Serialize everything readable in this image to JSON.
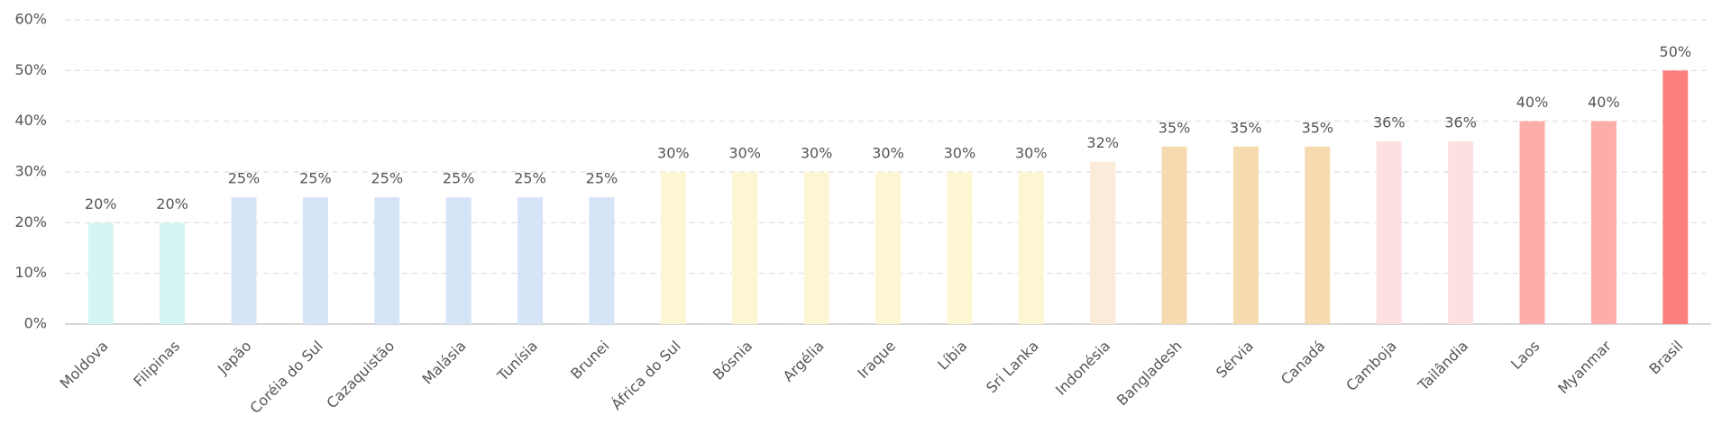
{
  "chart_data": {
    "type": "bar",
    "categories": [
      "Moldova",
      "Filipinas",
      "Japão",
      "Coréia do Sul",
      "Cazaquistão",
      "Malásia",
      "Tunísia",
      "Brunei",
      "África do Sul",
      "Bósnia",
      "Argélia",
      "Iraque",
      "Líbia",
      "Sri Lanka",
      "Indonésia",
      "Bangladesh",
      "Sérvia",
      "Canadá",
      "Camboja",
      "Tailândia",
      "Laos",
      "Myanmar",
      "Brasil"
    ],
    "values": [
      20,
      20,
      25,
      25,
      25,
      25,
      25,
      25,
      30,
      30,
      30,
      30,
      30,
      30,
      32,
      35,
      35,
      35,
      36,
      36,
      40,
      40,
      50
    ],
    "value_labels": [
      "20%",
      "20%",
      "25%",
      "25%",
      "25%",
      "25%",
      "25%",
      "25%",
      "30%",
      "30%",
      "30%",
      "30%",
      "30%",
      "30%",
      "32%",
      "35%",
      "35%",
      "35%",
      "36%",
      "36%",
      "40%",
      "40%",
      "50%"
    ],
    "colors": [
      "#d5f5f3",
      "#d5f5f3",
      "#d6e4f7",
      "#d6e4f7",
      "#d6e4f7",
      "#d6e4f7",
      "#d6e4f7",
      "#d6e4f7",
      "#fdf6d3",
      "#fdf6d3",
      "#fdf6d3",
      "#fdf6d3",
      "#fdf6d3",
      "#fdf6d3",
      "#fdebd9",
      "#f7dbb0",
      "#f7dbb0",
      "#f7dbb0",
      "#fde0e1",
      "#fde0e1",
      "#fdaeaa",
      "#fdaeaa",
      "#fc807e"
    ],
    "ylim": [
      0,
      60
    ],
    "yticks": [
      {
        "value": 0,
        "label": "0%"
      },
      {
        "value": 10,
        "label": "10%"
      },
      {
        "value": 20,
        "label": "20%"
      },
      {
        "value": 30,
        "label": "30%"
      },
      {
        "value": 40,
        "label": "40%"
      },
      {
        "value": 50,
        "label": "50%"
      },
      {
        "value": 60,
        "label": "60%"
      }
    ],
    "grid": true
  }
}
